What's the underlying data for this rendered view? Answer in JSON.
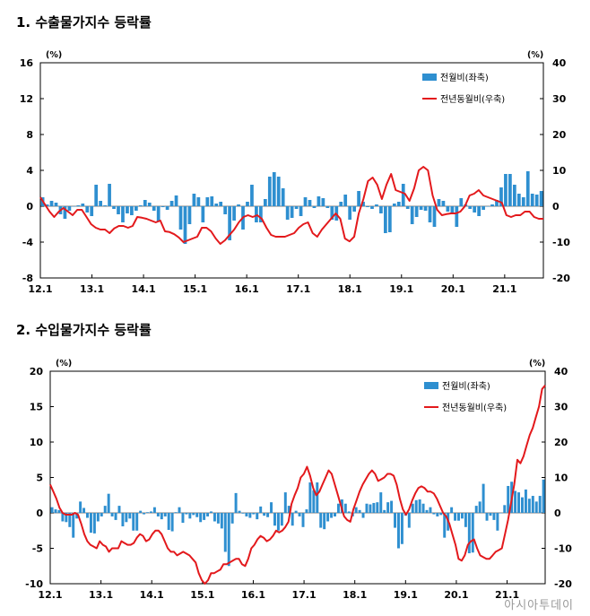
{
  "titles": {
    "chart1": "1. 수출물가지수 등락률",
    "chart2": "2. 수입물가지수 등락률"
  },
  "watermark": "아시아투데이",
  "colors": {
    "bar": "#2e8fd0",
    "line": "#e3191c",
    "axis": "#000000"
  },
  "chart_data": [
    {
      "type": "bar+line",
      "title": "1. 수출물가지수 등락률",
      "categories_labels": [
        "12.1",
        "13.1",
        "14.1",
        "15.1",
        "16.1",
        "17.1",
        "18.1",
        "19.1",
        "20.1",
        "21.1"
      ],
      "left_unit": "(%)",
      "right_unit": "(%)",
      "ylim_left": [
        -8,
        16
      ],
      "yticks_left": [
        16,
        12,
        8,
        4,
        0,
        -4,
        -8
      ],
      "ylim_right": [
        -20,
        40
      ],
      "yticks_right": [
        40,
        30,
        20,
        10,
        0,
        -10,
        -20
      ],
      "legend": "top-right",
      "series": [
        {
          "name": "전월비(좌축)",
          "kind": "bar",
          "axis": "left",
          "values": [
            1.0,
            0.2,
            0.6,
            0.4,
            -0.9,
            -1.4,
            -0.5,
            0.0,
            0.1,
            0.3,
            -0.7,
            -1.1,
            2.4,
            0.6,
            0.1,
            2.5,
            -0.3,
            -0.9,
            -1.8,
            -0.8,
            -1.0,
            -0.5,
            0.1,
            0.7,
            0.4,
            -0.5,
            -1.7,
            -0.1,
            -0.4,
            0.6,
            1.2,
            -2.6,
            -4.2,
            -2.0,
            1.4,
            1.0,
            -1.8,
            1.0,
            1.1,
            0.3,
            0.5,
            -0.9,
            -3.8,
            -1.6,
            0.2,
            -2.6,
            0.5,
            2.4,
            -1.8,
            -1.8,
            0.8,
            3.3,
            3.8,
            3.3,
            2.0,
            -1.5,
            -1.3,
            -0.3,
            -1.1,
            1.0,
            0.7,
            -0.2,
            1.1,
            0.9,
            -0.2,
            -1.5,
            -1.6,
            0.5,
            1.3,
            -1.5,
            -0.6,
            1.7,
            0.5,
            -0.1,
            -0.3,
            0.2,
            -0.8,
            -3.0,
            -2.9,
            0.3,
            0.5,
            2.5,
            -0.3,
            -2.0,
            -1.2,
            -0.4,
            -0.5,
            -1.8,
            -2.3,
            0.8,
            0.6,
            -0.6,
            -0.9,
            -2.3,
            0.9,
            0.2,
            -0.3,
            -0.7,
            -1.1,
            -0.4,
            0.0,
            0.2,
            0.7,
            2.1,
            3.6,
            3.6,
            2.4,
            1.4,
            1.0,
            3.9,
            1.4,
            1.3,
            1.7
          ]
        },
        {
          "name": "전년동월비(우축)",
          "kind": "line",
          "axis": "right",
          "values": [
            2.5,
            0.5,
            -1.5,
            -3,
            -1.5,
            -0.5,
            -1.5,
            -2.5,
            -1,
            -1,
            -3,
            -5,
            -6,
            -6.5,
            -6.5,
            -7.5,
            -6.2,
            -5.5,
            -5.5,
            -6,
            -5.5,
            -3,
            -3.2,
            -3.5,
            -4,
            -4.5,
            -4,
            -7,
            -7.2,
            -7.8,
            -8.7,
            -10,
            -9.5,
            -9,
            -8.5,
            -6,
            -6,
            -7,
            -9,
            -10.5,
            -9.5,
            -8,
            -6.5,
            -4.5,
            -3,
            -2.5,
            -3,
            -2.5,
            -3.5,
            -6,
            -8,
            -8.5,
            -8.5,
            -8.5,
            -8,
            -7.5,
            -6,
            -5,
            -4.5,
            -7.5,
            -8.5,
            -6.5,
            -5,
            -3.5,
            -2,
            -3.5,
            -9,
            -9.8,
            -8.5,
            -2,
            2,
            7,
            8,
            6,
            2,
            6,
            9,
            4.5,
            4,
            3.5,
            1.5,
            5,
            10,
            11,
            10,
            3,
            -1,
            -2.5,
            -2.2,
            -2,
            -2,
            -1.5,
            0,
            3,
            3.5,
            4.5,
            3,
            2.5,
            2,
            1.5,
            1,
            -2.5,
            -3,
            -2.5,
            -2.5,
            -1.5,
            -1.5,
            -3,
            -3.5,
            -3.5
          ]
        }
      ]
    },
    {
      "type": "bar+line",
      "title": "2. 수입물가지수 등락률",
      "categories_labels": [
        "12.1",
        "13.1",
        "14.1",
        "15.1",
        "16.1",
        "17.1",
        "18.1",
        "19.1",
        "20.1",
        "21.1"
      ],
      "left_unit": "(%)",
      "right_unit": "(%)",
      "ylim_left": [
        -10,
        20
      ],
      "yticks_left": [
        20,
        15,
        10,
        5,
        0,
        -5,
        -10
      ],
      "ylim_right": [
        -20,
        40
      ],
      "yticks_right": [
        40,
        30,
        20,
        10,
        0,
        -10,
        -20
      ],
      "legend": "top-right",
      "series": [
        {
          "name": "전월비(좌축)",
          "kind": "bar",
          "axis": "left",
          "values": [
            0.8,
            0.5,
            0.4,
            -1.2,
            -1.3,
            -2.0,
            -3.5,
            -0.8,
            1.6,
            0.7,
            -0.7,
            -2.8,
            -2.9,
            -1.2,
            -0.5,
            1.0,
            2.7,
            -0.5,
            -1.0,
            1.0,
            -1.9,
            -1.3,
            -0.8,
            -2.5,
            -2.5,
            0.3,
            -0.2,
            0.1,
            0.2,
            0.8,
            -0.5,
            -0.9,
            -0.5,
            -2.4,
            -2.6,
            0.1,
            0.8,
            -1.4,
            -0.2,
            -0.8,
            -0.3,
            -0.6,
            -1.3,
            -1.0,
            -0.5,
            0.2,
            -1.2,
            -1.5,
            -2.2,
            -5.5,
            -7.5,
            -1.5,
            2.8,
            0.3,
            -0.1,
            -0.5,
            -0.7,
            -0.2,
            -0.9,
            0.9,
            -0.4,
            -0.6,
            1.5,
            -1.8,
            -2.5,
            -1.8,
            2.9,
            1.0,
            -1.8,
            0.3,
            -0.5,
            -2.0,
            0.5,
            4.3,
            3.2,
            4.3,
            -2.1,
            -2.3,
            -1.2,
            -0.7,
            -0.5,
            1.3,
            1.9,
            1.3,
            0.2,
            -0.5,
            0.8,
            0.4,
            -0.7,
            1.3,
            1.2,
            1.4,
            1.5,
            2.9,
            0.4,
            1.5,
            1.7,
            -2.1,
            -5.0,
            -4.4,
            -0.4,
            -2.1,
            1.3,
            1.8,
            1.9,
            1.3,
            0.4,
            0.8,
            -0.2,
            -0.5,
            -0.3,
            -3.5,
            -2.5,
            0.8,
            -1.1,
            -1.1,
            -0.8,
            -2.0,
            -5.7,
            -5.6,
            1.0,
            1.6,
            4.1,
            -1.1,
            -0.4,
            -1.0,
            -2.5,
            0.0,
            1.1,
            3.8,
            4.4,
            3.1,
            2.9,
            2.2,
            3.3,
            2.0,
            2.4,
            1.6,
            2.4,
            4.7
          ]
        },
        {
          "name": "전년동월비(우축)",
          "kind": "line",
          "axis": "right",
          "values": [
            8,
            6,
            4,
            1.5,
            0,
            -0.5,
            -0.5,
            -0.5,
            0,
            -0.5,
            -3,
            -6,
            -8,
            -9,
            -9.5,
            -10,
            -8,
            -9,
            -9.5,
            -11,
            -10,
            -10,
            -10,
            -8,
            -8.5,
            -9,
            -9,
            -8.5,
            -7,
            -6,
            -6.5,
            -8,
            -7.5,
            -6,
            -5,
            -5,
            -6,
            -8,
            -10,
            -11,
            -11,
            -12,
            -11.5,
            -11,
            -11.5,
            -12,
            -13,
            -14,
            -17,
            -19,
            -20,
            -19,
            -17,
            -17,
            -16.5,
            -16,
            -14.5,
            -14.5,
            -14,
            -13.5,
            -13,
            -13,
            -14.5,
            -15,
            -13,
            -10,
            -9,
            -7.5,
            -6.5,
            -7,
            -8,
            -7.5,
            -6.5,
            -5,
            -5.5,
            -5,
            -4,
            -2.5,
            2.5,
            5,
            7,
            10,
            11,
            13,
            10.5,
            7,
            5,
            6,
            8,
            10,
            12,
            11,
            8,
            5,
            2,
            -1,
            -2,
            -2.5,
            1,
            3.5,
            6,
            8,
            9.5,
            11,
            12,
            11,
            9,
            9.5,
            10,
            11,
            11,
            10.5,
            8,
            4,
            1,
            -0.5,
            1,
            3.5,
            5.5,
            7,
            7.5,
            7,
            6,
            6,
            5.5,
            4,
            2,
            0,
            -1,
            -3,
            -6,
            -9,
            -13,
            -13.5,
            -12,
            -9,
            -8,
            -7.5,
            -10,
            -12,
            -12.5,
            -13,
            -13,
            -12,
            -11,
            -10.5,
            -10,
            -6,
            -2,
            3,
            8,
            15,
            14,
            16,
            19,
            22,
            24,
            27,
            30,
            35,
            36
          ]
        }
      ]
    }
  ],
  "legend_labels": {
    "bar": "전월비(좌축)",
    "line": "전년동월비(우축)"
  }
}
